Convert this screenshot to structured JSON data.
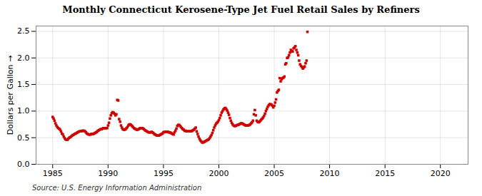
{
  "chart_data": {
    "type": "scatter",
    "title": "Monthly Connecticut Kerosene-Type Jet Fuel Retail Sales by Refiners",
    "ylabel": "Dollars per Gallon",
    "caption": "Source: U.S. Energy Information Administration",
    "xlim": [
      1983.5,
      2022.5
    ],
    "ylim": [
      0.0,
      2.6
    ],
    "xticks": [
      1985,
      1990,
      1995,
      2000,
      2005,
      2010,
      2015,
      2020
    ],
    "yticks": [
      {
        "value": 0.0,
        "label": "0.0"
      },
      0.5,
      {
        "value": 1.0,
        "label": "1.0"
      },
      1.5,
      {
        "value": 2.0,
        "label": "2.0"
      },
      2.5
    ],
    "grid": true,
    "marker": "square",
    "color": "#cc0000",
    "x": [
      1985.0,
      1985.083,
      1985.167,
      1985.25,
      1985.333,
      1985.417,
      1985.5,
      1985.583,
      1985.667,
      1985.75,
      1985.833,
      1985.917,
      1986.0,
      1986.083,
      1986.167,
      1986.25,
      1986.333,
      1986.417,
      1986.5,
      1986.583,
      1986.667,
      1986.75,
      1986.833,
      1986.917,
      1987.0,
      1987.083,
      1987.167,
      1987.25,
      1987.333,
      1987.417,
      1987.5,
      1987.583,
      1987.667,
      1987.75,
      1987.833,
      1987.917,
      1988.0,
      1988.083,
      1988.167,
      1988.25,
      1988.333,
      1988.417,
      1988.5,
      1988.583,
      1988.667,
      1988.75,
      1988.833,
      1988.917,
      1989.0,
      1989.083,
      1989.167,
      1989.25,
      1989.333,
      1989.417,
      1989.5,
      1989.583,
      1989.667,
      1989.75,
      1989.833,
      1989.917,
      1990.0,
      1990.083,
      1990.167,
      1990.25,
      1990.333,
      1990.417,
      1990.5,
      1990.583,
      1990.667,
      1990.75,
      1990.833,
      1990.917,
      1991.0,
      1991.083,
      1991.167,
      1991.25,
      1991.333,
      1991.417,
      1991.5,
      1991.583,
      1991.667,
      1991.75,
      1991.833,
      1991.917,
      1992.0,
      1992.083,
      1992.167,
      1992.25,
      1992.333,
      1992.417,
      1992.5,
      1992.583,
      1992.667,
      1992.75,
      1992.833,
      1992.917,
      1993.0,
      1993.083,
      1993.167,
      1993.25,
      1993.333,
      1993.417,
      1993.5,
      1993.583,
      1993.667,
      1993.75,
      1993.833,
      1993.917,
      1994.0,
      1994.083,
      1994.167,
      1994.25,
      1994.333,
      1994.417,
      1994.5,
      1994.583,
      1994.667,
      1994.75,
      1994.833,
      1994.917,
      1995.0,
      1995.083,
      1995.167,
      1995.25,
      1995.333,
      1995.417,
      1995.5,
      1995.583,
      1995.667,
      1995.75,
      1995.833,
      1995.917,
      1996.0,
      1996.083,
      1996.167,
      1996.25,
      1996.333,
      1996.417,
      1996.5,
      1996.583,
      1996.667,
      1996.75,
      1996.833,
      1996.917,
      1997.0,
      1997.083,
      1997.167,
      1997.25,
      1997.333,
      1997.417,
      1997.5,
      1997.583,
      1997.667,
      1997.75,
      1997.833,
      1997.917,
      1998.0,
      1998.083,
      1998.167,
      1998.25,
      1998.333,
      1998.417,
      1998.5,
      1998.583,
      1998.667,
      1998.75,
      1998.833,
      1998.917,
      1999.0,
      1999.083,
      1999.167,
      1999.25,
      1999.333,
      1999.417,
      1999.5,
      1999.583,
      1999.667,
      1999.75,
      1999.833,
      1999.917,
      2000.0,
      2000.083,
      2000.167,
      2000.25,
      2000.333,
      2000.417,
      2000.5,
      2000.583,
      2000.667,
      2000.75,
      2000.833,
      2000.917,
      2001.0,
      2001.083,
      2001.167,
      2001.25,
      2001.333,
      2001.417,
      2001.5,
      2001.583,
      2001.667,
      2001.75,
      2001.833,
      2001.917,
      2002.0,
      2002.083,
      2002.167,
      2002.25,
      2002.333,
      2002.417,
      2002.5,
      2002.583,
      2002.667,
      2002.75,
      2002.833,
      2002.917,
      2003.0,
      2003.083,
      2003.167,
      2003.25,
      2003.333,
      2003.417,
      2003.5,
      2003.583,
      2003.667,
      2003.75,
      2003.833,
      2003.917,
      2004.0,
      2004.083,
      2004.167,
      2004.25,
      2004.333,
      2004.417,
      2004.5,
      2004.583,
      2004.667,
      2004.75,
      2004.833,
      2004.917,
      2005.0,
      2005.083,
      2005.167,
      2005.25,
      2005.333,
      2005.417,
      2005.5,
      2005.583,
      2005.667,
      2005.75,
      2005.833,
      2005.917,
      2006.0,
      2006.083,
      2006.167,
      2006.25,
      2006.333,
      2006.417,
      2006.5,
      2006.583,
      2006.667,
      2006.75,
      2006.833,
      2006.917,
      2007.0,
      2007.083,
      2007.167,
      2007.25,
      2007.333,
      2007.417,
      2007.5,
      2007.583,
      2007.667,
      2007.75,
      2007.833,
      2007.917,
      2008.0
    ],
    "values": [
      0.89,
      0.86,
      0.82,
      0.77,
      0.73,
      0.7,
      0.68,
      0.67,
      0.65,
      0.62,
      0.58,
      0.56,
      0.52,
      0.49,
      0.47,
      0.46,
      0.46,
      0.48,
      0.5,
      0.51,
      0.52,
      0.54,
      0.55,
      0.56,
      0.57,
      0.58,
      0.59,
      0.6,
      0.61,
      0.62,
      0.62,
      0.62,
      0.63,
      0.63,
      0.63,
      0.62,
      0.6,
      0.58,
      0.57,
      0.56,
      0.56,
      0.56,
      0.57,
      0.57,
      0.57,
      0.58,
      0.59,
      0.6,
      0.61,
      0.63,
      0.64,
      0.65,
      0.66,
      0.66,
      0.67,
      0.68,
      0.68,
      0.68,
      0.68,
      0.68,
      0.73,
      0.78,
      0.86,
      0.92,
      0.96,
      0.98,
      0.97,
      0.95,
      0.92,
      0.94,
      1.21,
      1.2,
      0.85,
      0.8,
      0.73,
      0.69,
      0.66,
      0.65,
      0.65,
      0.66,
      0.68,
      0.7,
      0.73,
      0.75,
      0.75,
      0.74,
      0.72,
      0.7,
      0.68,
      0.67,
      0.66,
      0.65,
      0.65,
      0.66,
      0.67,
      0.68,
      0.68,
      0.68,
      0.67,
      0.66,
      0.64,
      0.63,
      0.62,
      0.61,
      0.6,
      0.6,
      0.6,
      0.61,
      0.6,
      0.59,
      0.57,
      0.56,
      0.55,
      0.54,
      0.54,
      0.54,
      0.55,
      0.56,
      0.57,
      0.58,
      0.6,
      0.61,
      0.61,
      0.61,
      0.61,
      0.61,
      0.6,
      0.6,
      0.59,
      0.58,
      0.57,
      0.56,
      0.6,
      0.63,
      0.67,
      0.72,
      0.74,
      0.74,
      0.72,
      0.7,
      0.68,
      0.66,
      0.65,
      0.63,
      0.63,
      0.62,
      0.62,
      0.62,
      0.62,
      0.62,
      0.62,
      0.63,
      0.64,
      0.65,
      0.67,
      0.69,
      0.62,
      0.57,
      0.52,
      0.48,
      0.45,
      0.43,
      0.41,
      0.41,
      0.42,
      0.43,
      0.44,
      0.45,
      0.46,
      0.47,
      0.49,
      0.52,
      0.55,
      0.59,
      0.64,
      0.69,
      0.73,
      0.76,
      0.78,
      0.8,
      0.83,
      0.87,
      0.92,
      0.97,
      1.0,
      1.03,
      1.05,
      1.06,
      1.04,
      1.01,
      0.97,
      0.93,
      0.87,
      0.82,
      0.78,
      0.75,
      0.73,
      0.72,
      0.72,
      0.73,
      0.74,
      0.74,
      0.75,
      0.76,
      0.77,
      0.77,
      0.76,
      0.75,
      0.74,
      0.73,
      0.73,
      0.73,
      0.73,
      0.74,
      0.75,
      0.77,
      0.79,
      0.82,
      0.94,
      1.02,
      0.92,
      0.82,
      0.8,
      0.79,
      0.8,
      0.82,
      0.84,
      0.86,
      0.88,
      0.91,
      0.95,
      1.0,
      1.04,
      1.08,
      1.11,
      1.13,
      1.13,
      1.12,
      1.1,
      1.07,
      1.1,
      1.16,
      1.22,
      1.35,
      1.38,
      1.4,
      1.62,
      1.56,
      1.6,
      1.62,
      1.63,
      1.65,
      1.88,
      1.9,
      2.0,
      2.01,
      2.05,
      2.1,
      2.15,
      2.13,
      2.12,
      2.18,
      2.2,
      2.22,
      2.15,
      2.1,
      2.05,
      1.95,
      1.88,
      1.85,
      1.83,
      1.8,
      1.82,
      1.84,
      1.9,
      1.95,
      2.49
    ]
  }
}
